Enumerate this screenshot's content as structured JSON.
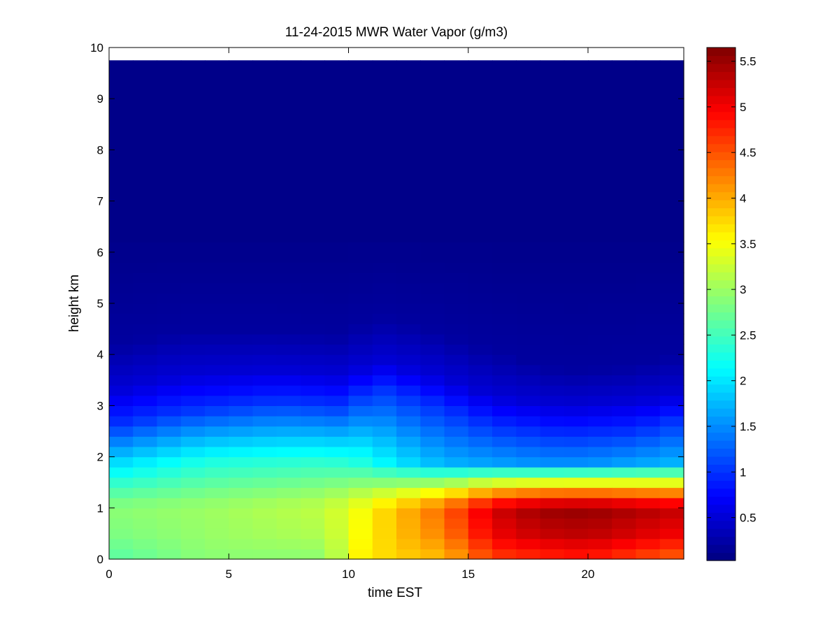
{
  "chart_data": {
    "type": "heatmap",
    "title": "11-24-2015 MWR Water Vapor (g/m3)",
    "xlabel": "time EST",
    "ylabel": "height km",
    "xlim": [
      0,
      24
    ],
    "ylim": [
      0,
      10
    ],
    "x_ticks": [
      "0",
      "5",
      "10",
      "15",
      "20"
    ],
    "y_ticks": [
      "0",
      "1",
      "2",
      "3",
      "4",
      "5",
      "6",
      "7",
      "8",
      "9",
      "10"
    ],
    "colormap": "jet",
    "clim": [
      0.03,
      5.65
    ],
    "colorbar_ticks": [
      "0.5",
      "1",
      "1.5",
      "2",
      "2.5",
      "3",
      "3.5",
      "4",
      "4.5",
      "5",
      "5.5"
    ],
    "x": [
      0,
      1,
      2,
      3,
      4,
      5,
      6,
      7,
      8,
      9,
      10,
      11,
      12,
      13,
      14,
      15,
      16,
      17,
      18,
      19,
      20,
      21,
      22,
      23
    ],
    "y_km": [
      0.1,
      0.3,
      0.5,
      0.7,
      0.9,
      1.1,
      1.3,
      1.5,
      1.7,
      1.9,
      2.1,
      2.3,
      2.5,
      2.7,
      2.9,
      3.1,
      3.3,
      3.5,
      3.7,
      3.9,
      4.1,
      4.3,
      4.5,
      4.7,
      4.9,
      5.1,
      5.3,
      5.5,
      5.7,
      5.9,
      6.5,
      7.5,
      8.5,
      9.5
    ],
    "grid": false
  },
  "colors": {
    "background": "#ffffff",
    "axis": "#000000"
  }
}
